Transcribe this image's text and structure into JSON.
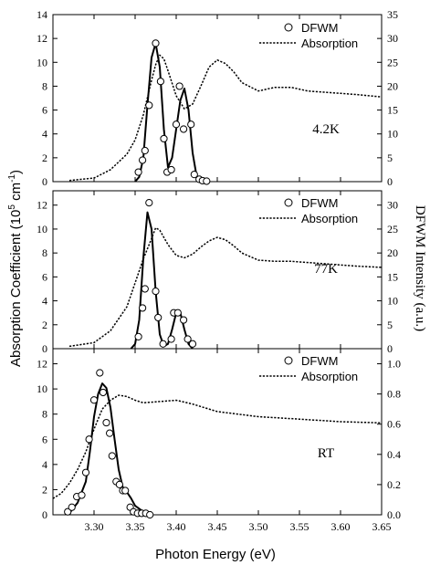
{
  "x_axis_title": "Photon Energy (eV)",
  "left_axis_title": "Absorption Coefficient (10^5 cm^-1)",
  "left_axis_title_main": "Absorption Coefficient (10",
  "left_axis_title_sup1": "5",
  "left_axis_title_mid": " cm",
  "left_axis_title_sup2": "-1",
  "left_axis_title_end": ")",
  "right_axis_title": "DFWM Intensity (a.u.)",
  "colors": {
    "line": "#000000",
    "background": "#ffffff"
  },
  "chart_data": [
    {
      "type": "line",
      "panel_label": "4.2K",
      "legend": [
        "DFWM",
        "Absorption"
      ],
      "xlim": [
        3.25,
        3.65
      ],
      "ylim_left": [
        0,
        14
      ],
      "ylim_right": [
        0,
        35
      ],
      "left_ticks": [
        "0",
        "2",
        "4",
        "6",
        "8",
        "10",
        "12",
        "14"
      ],
      "right_ticks": [
        "0",
        "5",
        "10",
        "15",
        "20",
        "25",
        "30",
        "35"
      ],
      "series": [
        {
          "name": "Absorption",
          "axis": "left",
          "style": "dotted",
          "x": [
            3.27,
            3.3,
            3.32,
            3.34,
            3.35,
            3.36,
            3.37,
            3.375,
            3.38,
            3.385,
            3.39,
            3.4,
            3.41,
            3.42,
            3.43,
            3.44,
            3.45,
            3.46,
            3.47,
            3.48,
            3.5,
            3.52,
            3.54,
            3.56,
            3.58,
            3.6,
            3.62,
            3.65
          ],
          "y": [
            0.1,
            0.3,
            1.0,
            2.3,
            3.5,
            5.6,
            8.5,
            9.8,
            10.6,
            10.3,
            9.3,
            7.2,
            6.1,
            6.5,
            8.0,
            9.6,
            10.2,
            9.9,
            9.2,
            8.3,
            7.6,
            7.9,
            7.9,
            7.6,
            7.5,
            7.4,
            7.3,
            7.1
          ]
        },
        {
          "name": "DFWM (fit)",
          "axis": "right",
          "style": "solid",
          "x": [
            3.35,
            3.355,
            3.36,
            3.365,
            3.37,
            3.375,
            3.38,
            3.385,
            3.39,
            3.395,
            3.4,
            3.405,
            3.41,
            3.415,
            3.42,
            3.425,
            3.43
          ],
          "y": [
            0,
            1,
            5,
            16,
            26,
            29,
            24,
            11,
            3,
            5,
            11,
            17,
            19.5,
            15,
            6,
            1,
            0
          ]
        },
        {
          "name": "DFWM",
          "axis": "right",
          "style": "markers",
          "x": [
            3.354,
            3.359,
            3.362,
            3.367,
            3.375,
            3.381,
            3.385,
            3.389,
            3.394,
            3.4,
            3.404,
            3.409,
            3.418,
            3.422,
            3.428,
            3.432,
            3.437
          ],
          "y": [
            2,
            4.5,
            6.5,
            16,
            29,
            21,
            9,
            2,
            2.5,
            12,
            20,
            11,
            12,
            1.5,
            0.5,
            0.2,
            0.1
          ]
        }
      ]
    },
    {
      "type": "line",
      "panel_label": "77K",
      "legend": [
        "DFWM",
        "Absorption"
      ],
      "xlim": [
        3.25,
        3.65
      ],
      "ylim_left": [
        0,
        13.2
      ],
      "ylim_right": [
        0,
        33
      ],
      "left_ticks": [
        "0",
        "2",
        "4",
        "6",
        "8",
        "10",
        "12"
      ],
      "right_ticks": [
        "0",
        "5",
        "10",
        "15",
        "20",
        "25",
        "30"
      ],
      "series": [
        {
          "name": "Absorption",
          "axis": "left",
          "style": "dotted",
          "x": [
            3.27,
            3.3,
            3.32,
            3.34,
            3.35,
            3.36,
            3.37,
            3.375,
            3.38,
            3.39,
            3.4,
            3.41,
            3.42,
            3.43,
            3.44,
            3.45,
            3.46,
            3.47,
            3.48,
            3.5,
            3.52,
            3.54,
            3.56,
            3.58,
            3.6,
            3.62,
            3.65
          ],
          "y": [
            0.2,
            0.5,
            1.5,
            3.5,
            5.5,
            7.5,
            9.2,
            10.1,
            9.9,
            8.7,
            7.8,
            7.6,
            7.9,
            8.5,
            9.0,
            9.3,
            9.1,
            8.6,
            8.0,
            7.4,
            7.3,
            7.3,
            7.2,
            7.1,
            7.0,
            6.9,
            6.8
          ]
        },
        {
          "name": "DFWM (fit)",
          "axis": "right",
          "style": "solid",
          "x": [
            3.345,
            3.35,
            3.355,
            3.36,
            3.365,
            3.37,
            3.375,
            3.38,
            3.385,
            3.39,
            3.395,
            3.4,
            3.405,
            3.41,
            3.415,
            3.42
          ],
          "y": [
            0,
            1,
            6,
            19,
            28.5,
            25,
            12,
            3,
            0.5,
            1,
            4,
            7.5,
            7.5,
            4,
            1,
            0
          ]
        },
        {
          "name": "DFWM",
          "axis": "right",
          "style": "markers",
          "x": [
            3.354,
            3.359,
            3.362,
            3.367,
            3.375,
            3.378,
            3.384,
            3.394,
            3.397,
            3.402,
            3.409,
            3.414,
            3.42
          ],
          "y": [
            2.5,
            8.5,
            12.5,
            30.5,
            12,
            6.5,
            1,
            2,
            7.5,
            7.5,
            6,
            2,
            1
          ]
        }
      ]
    },
    {
      "type": "line",
      "panel_label": "RT",
      "legend": [
        "DFWM",
        "Absorption"
      ],
      "xlim": [
        3.25,
        3.65
      ],
      "ylim_left": [
        0,
        13.2
      ],
      "ylim_right": [
        0,
        1.1
      ],
      "left_ticks": [
        "0",
        "2",
        "4",
        "6",
        "8",
        "10",
        "12"
      ],
      "right_ticks": [
        "0.0",
        "0.2",
        "0.4",
        "0.6",
        "0.8",
        "1.0"
      ],
      "series": [
        {
          "name": "Absorption",
          "axis": "left",
          "style": "dotted",
          "x": [
            3.25,
            3.26,
            3.27,
            3.28,
            3.29,
            3.3,
            3.31,
            3.32,
            3.33,
            3.34,
            3.35,
            3.36,
            3.38,
            3.4,
            3.42,
            3.45,
            3.5,
            3.55,
            3.6,
            3.65
          ],
          "y": [
            1.3,
            1.7,
            2.5,
            3.6,
            5.0,
            6.8,
            8.4,
            9.1,
            9.5,
            9.4,
            9.1,
            8.9,
            9.0,
            9.1,
            8.8,
            8.2,
            7.8,
            7.6,
            7.4,
            7.3
          ]
        },
        {
          "name": "DFWM (fit)",
          "axis": "right",
          "style": "solid",
          "x": [
            3.27,
            3.28,
            3.29,
            3.295,
            3.3,
            3.305,
            3.31,
            3.315,
            3.32,
            3.325,
            3.33,
            3.335,
            3.34,
            3.345,
            3.35,
            3.36,
            3.37
          ],
          "y": [
            0.01,
            0.08,
            0.22,
            0.42,
            0.65,
            0.8,
            0.87,
            0.84,
            0.71,
            0.5,
            0.3,
            0.18,
            0.15,
            0.11,
            0.06,
            0.02,
            0.0
          ]
        },
        {
          "name": "DFWM",
          "axis": "right",
          "style": "markers",
          "x": [
            3.268,
            3.273,
            3.279,
            3.285,
            3.29,
            3.294,
            3.3,
            3.307,
            3.311,
            3.315,
            3.319,
            3.322,
            3.327,
            3.331,
            3.335,
            3.338,
            3.344,
            3.348,
            3.353,
            3.358,
            3.363,
            3.368
          ],
          "y": [
            0.02,
            0.05,
            0.12,
            0.13,
            0.28,
            0.5,
            0.76,
            0.94,
            0.81,
            0.61,
            0.54,
            0.39,
            0.22,
            0.2,
            0.16,
            0.16,
            0.05,
            0.02,
            0.01,
            0.01,
            0.01,
            0.0
          ]
        }
      ]
    }
  ],
  "x_ticks": [
    "3.30",
    "3.35",
    "3.40",
    "3.45",
    "3.50",
    "3.55",
    "3.60",
    "3.65"
  ]
}
